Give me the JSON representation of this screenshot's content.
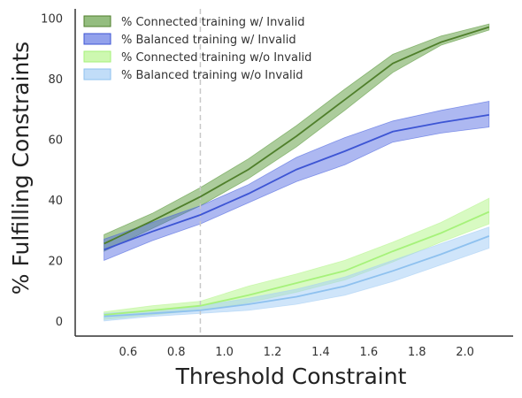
{
  "chart_data": {
    "type": "line",
    "title": "",
    "xlabel": "Threshold Constraint",
    "ylabel": "% Fulfilling Constraints",
    "xlim": [
      0.38,
      2.2
    ],
    "ylim": [
      -5,
      103
    ],
    "xticks": [
      0.6,
      0.8,
      1.0,
      1.2,
      1.4,
      1.6,
      1.8,
      2.0
    ],
    "yticks": [
      0,
      20,
      40,
      60,
      80,
      100
    ],
    "xtick_labels": [
      "0.6",
      "0.8",
      "1.0",
      "1.2",
      "1.4",
      "1.6",
      "1.8",
      "2.0"
    ],
    "ytick_labels": [
      "0",
      "20",
      "40",
      "60",
      "80",
      "100"
    ],
    "grid": false,
    "legend_position": "top-left",
    "vline": {
      "x": 0.9,
      "style": "dashed",
      "color": "#c8c8c8"
    },
    "x": [
      0.5,
      0.7,
      0.9,
      1.1,
      1.3,
      1.5,
      1.7,
      1.9,
      2.1
    ],
    "series": [
      {
        "name": "% Connected training w/ Invalid",
        "line_color": "#4f7f2b",
        "fill_color": "#5a9a3a",
        "fill_opacity": 0.5,
        "values": [
          25.5,
          33,
          41,
          50,
          61,
          73,
          85,
          92,
          97
        ],
        "lower": [
          23,
          30.5,
          38,
          47,
          57.5,
          69.5,
          82,
          91,
          96
        ],
        "upper": [
          28.5,
          35.5,
          44,
          53.5,
          64.5,
          76.5,
          88,
          94,
          98
        ]
      },
      {
        "name": "% Balanced training w/ Invalid",
        "line_color": "#3d55d4",
        "fill_color": "#4a62e0",
        "fill_opacity": 0.45,
        "values": [
          23.5,
          29.5,
          35,
          42,
          50,
          56,
          62.5,
          65.5,
          68
        ],
        "lower": [
          20,
          26.5,
          32,
          39,
          46,
          51.5,
          59,
          62,
          64
        ],
        "upper": [
          27,
          32.5,
          38,
          45,
          54,
          60.5,
          66,
          69.5,
          72.5
        ]
      },
      {
        "name": "% Connected training w/o Invalid",
        "line_color": "#a6f27a",
        "fill_color": "#b8f58f",
        "fill_opacity": 0.55,
        "values": [
          2,
          3.5,
          5,
          8.5,
          12.5,
          16.5,
          23,
          29,
          36
        ],
        "lower": [
          0.5,
          2,
          3.5,
          6,
          9.5,
          13.5,
          19.5,
          26,
          32
        ],
        "upper": [
          3,
          5,
          6.5,
          11.5,
          15.5,
          20,
          26,
          32.5,
          40.5
        ]
      },
      {
        "name": "% Balanced training w/o Invalid",
        "line_color": "#8ec1ef",
        "fill_color": "#a7cff5",
        "fill_opacity": 0.55,
        "values": [
          1.5,
          2.5,
          3.5,
          5.5,
          8,
          11.5,
          16.5,
          22,
          28
        ],
        "lower": [
          0,
          1.5,
          2.5,
          3.5,
          5.5,
          8.5,
          13,
          18.5,
          24
        ],
        "upper": [
          2.5,
          3.5,
          5,
          7.5,
          10.5,
          14.5,
          20,
          25.5,
          31
        ]
      }
    ]
  }
}
